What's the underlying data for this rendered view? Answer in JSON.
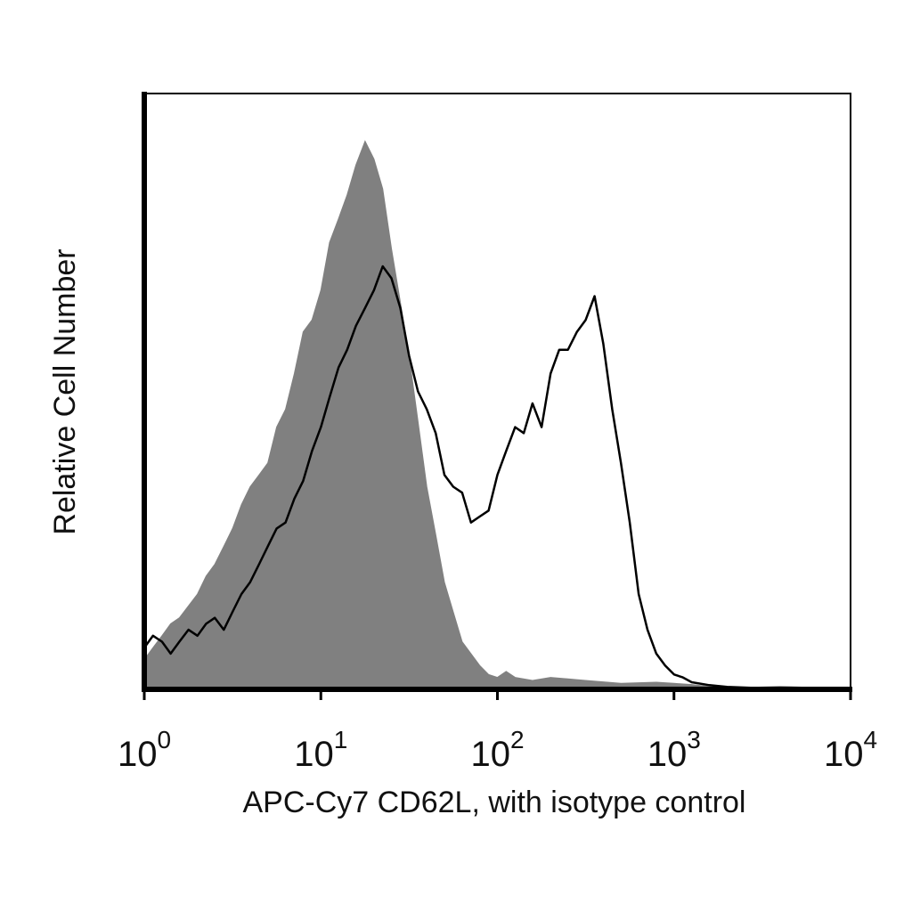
{
  "chart_data": {
    "type": "area",
    "title": "",
    "xlabel": "APC-Cy7 CD62L, with isotype control",
    "ylabel": "Relative Cell Number",
    "xscale": "log",
    "xlim": [
      1,
      10000
    ],
    "ylim": [
      0,
      100
    ],
    "grid": false,
    "legend": "none",
    "x_ticks": [
      {
        "base": "10",
        "exp": "0",
        "value": 1
      },
      {
        "base": "10",
        "exp": "1",
        "value": 10
      },
      {
        "base": "10",
        "exp": "2",
        "value": 100
      },
      {
        "base": "10",
        "exp": "3",
        "value": 1000
      },
      {
        "base": "10",
        "exp": "4",
        "value": 10000
      }
    ],
    "series": [
      {
        "style": "filled",
        "color": "#808080",
        "x": [
          1,
          1.12,
          1.26,
          1.41,
          1.58,
          1.78,
          2.0,
          2.24,
          2.51,
          2.82,
          3.16,
          3.55,
          3.98,
          4.47,
          5.01,
          5.62,
          6.31,
          7.08,
          7.94,
          8.91,
          10.0,
          11.2,
          12.6,
          14.1,
          15.8,
          17.8,
          20.0,
          22.4,
          25.1,
          28.2,
          31.6,
          35.5,
          39.8,
          44.7,
          50.1,
          56.2,
          63.1,
          70.8,
          79.4,
          89.1,
          100,
          112,
          126,
          158,
          200,
          316,
          501,
          794,
          1000,
          1259,
          1585,
          2512,
          3981,
          6310,
          10000
        ],
        "y": [
          5,
          7,
          9,
          11,
          12,
          14,
          16,
          19,
          21,
          24,
          27,
          31,
          34,
          36,
          38,
          44,
          47,
          53,
          60,
          62,
          67,
          75,
          79,
          83,
          88,
          92,
          89,
          84,
          74,
          65,
          56,
          45,
          34,
          26,
          18,
          13,
          8,
          6,
          4,
          2.5,
          2,
          3,
          2,
          1.5,
          2,
          1.5,
          1,
          1.2,
          1,
          0.8,
          0.5,
          0.3,
          0.5,
          0.3,
          0.2
        ]
      },
      {
        "style": "outline",
        "color": "#000000",
        "x": [
          1,
          1.12,
          1.26,
          1.41,
          1.58,
          1.78,
          2.0,
          2.24,
          2.51,
          2.82,
          3.16,
          3.55,
          3.98,
          4.47,
          5.01,
          5.62,
          6.31,
          7.08,
          7.94,
          8.91,
          10.0,
          11.2,
          12.6,
          14.1,
          15.8,
          17.8,
          20.0,
          22.4,
          25.1,
          28.2,
          31.6,
          35.5,
          39.8,
          44.7,
          50.1,
          56.2,
          63.1,
          70.8,
          79.4,
          89.1,
          100,
          112,
          126,
          141,
          158,
          178,
          200,
          224,
          251,
          282,
          316,
          355,
          398,
          447,
          501,
          562,
          631,
          708,
          794,
          891,
          1000,
          1122,
          1259,
          1585,
          2000,
          3162,
          10000
        ],
        "y": [
          7,
          9,
          8,
          6,
          8,
          10,
          9,
          11,
          12,
          10,
          13,
          16,
          18,
          21,
          24,
          27,
          28,
          32,
          35,
          40,
          44,
          49,
          54,
          57,
          61,
          64,
          67,
          71,
          69,
          64,
          56,
          50,
          47,
          43,
          36,
          34,
          33,
          28,
          29,
          30,
          36,
          40,
          44,
          43,
          48,
          44,
          53,
          57,
          57,
          60,
          62,
          66,
          58,
          47,
          38,
          28,
          16,
          10,
          6,
          4,
          2.5,
          2,
          1.2,
          0.7,
          0.4,
          0.2,
          0
        ]
      }
    ]
  }
}
